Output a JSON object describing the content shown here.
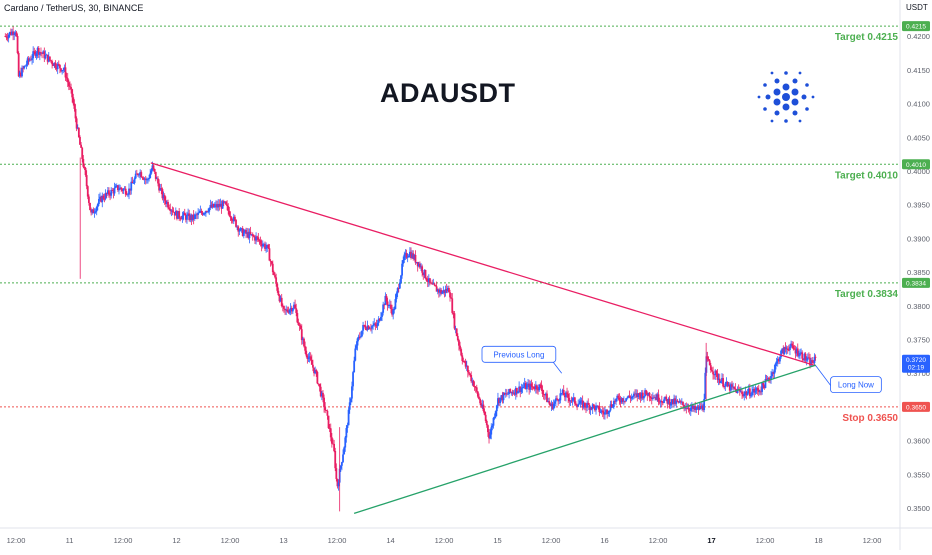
{
  "header": {
    "pair": "Cardano / TetherUS, 30, BINANCE",
    "title": "ADAUSDT",
    "unit": "USDT"
  },
  "colors": {
    "up": "#2962ff",
    "down": "#e91e63",
    "target": "#4caf50",
    "stop": "#ef5350",
    "resistance": "#e91e63",
    "support": "#26a269",
    "logo": "#1e4fd8"
  },
  "chart_data": {
    "type": "candlestick",
    "title": "ADAUSDT",
    "ylabel": "USDT",
    "ylim": [
      0.3465,
      0.4228
    ],
    "y_ticks": [
      0.35,
      0.355,
      0.36,
      0.365,
      0.37,
      0.375,
      0.38,
      0.385,
      0.39,
      0.395,
      0.4,
      0.405,
      0.41,
      0.415,
      0.42
    ],
    "x_ticks": [
      {
        "label": "12:00",
        "t": 0
      },
      {
        "label": "11",
        "t": 1
      },
      {
        "label": "12:00",
        "t": 2
      },
      {
        "label": "12",
        "t": 3
      },
      {
        "label": "12:00",
        "t": 4
      },
      {
        "label": "13",
        "t": 5
      },
      {
        "label": "12:00",
        "t": 6
      },
      {
        "label": "14",
        "t": 7
      },
      {
        "label": "12:00",
        "t": 8
      },
      {
        "label": "15",
        "t": 9
      },
      {
        "label": "12:00",
        "t": 10
      },
      {
        "label": "16",
        "t": 11
      },
      {
        "label": "12:00",
        "t": 12
      },
      {
        "label": "17",
        "t": 13,
        "bold": true
      },
      {
        "label": "12:00",
        "t": 14
      },
      {
        "label": "18",
        "t": 15
      },
      {
        "label": "12:00",
        "t": 16
      }
    ],
    "t_range": [
      -0.2,
      16.5
    ],
    "levels": [
      {
        "name": "Target",
        "value": 0.4215,
        "label": "Target  0.4215",
        "badge": "0.4215",
        "kind": "target"
      },
      {
        "name": "Target",
        "value": 0.401,
        "label": "Target  0.4010",
        "badge": "0.4010",
        "kind": "target"
      },
      {
        "name": "Target",
        "value": 0.3834,
        "label": "Target  0.3834",
        "badge": "0.3834",
        "kind": "target"
      },
      {
        "name": "Stop",
        "value": 0.365,
        "label": "Stop  0.3650",
        "badge": "0.3650",
        "kind": "stop"
      }
    ],
    "last_price": {
      "value": 0.372,
      "label": "0.3720",
      "countdown": "02:19"
    },
    "trendlines": [
      {
        "name": "resistance",
        "from": {
          "t": 2.52,
          "p": 0.4012
        },
        "to": {
          "t": 14.95,
          "p": 0.3711
        }
      },
      {
        "name": "support",
        "from": {
          "t": 6.32,
          "p": 0.3492
        },
        "to": {
          "t": 14.95,
          "p": 0.3712
        }
      }
    ],
    "annotations": [
      {
        "text": "Previous Long",
        "t": 9.4,
        "p": 0.3728,
        "pointer": {
          "t": 10.2,
          "p": 0.37
        }
      },
      {
        "text": "Long Now",
        "t": 15.7,
        "p": 0.3683,
        "pointer": {
          "t": 14.95,
          "p": 0.3711
        }
      }
    ],
    "price_path": [
      {
        "t": -0.2,
        "p": 0.42
      },
      {
        "t": 0.0,
        "p": 0.421
      },
      {
        "t": 0.05,
        "p": 0.414
      },
      {
        "t": 0.2,
        "p": 0.416
      },
      {
        "t": 0.4,
        "p": 0.418
      },
      {
        "t": 0.7,
        "p": 0.416
      },
      {
        "t": 0.9,
        "p": 0.415
      },
      {
        "t": 1.05,
        "p": 0.411
      },
      {
        "t": 1.15,
        "p": 0.406
      },
      {
        "t": 1.3,
        "p": 0.399
      },
      {
        "t": 1.4,
        "p": 0.3935
      },
      {
        "t": 1.6,
        "p": 0.396
      },
      {
        "t": 1.9,
        "p": 0.3975
      },
      {
        "t": 2.1,
        "p": 0.397
      },
      {
        "t": 2.3,
        "p": 0.4
      },
      {
        "t": 2.45,
        "p": 0.3985
      },
      {
        "t": 2.55,
        "p": 0.4005
      },
      {
        "t": 2.75,
        "p": 0.396
      },
      {
        "t": 3.0,
        "p": 0.3935
      },
      {
        "t": 3.3,
        "p": 0.393
      },
      {
        "t": 3.6,
        "p": 0.3945
      },
      {
        "t": 3.9,
        "p": 0.395
      },
      {
        "t": 4.2,
        "p": 0.391
      },
      {
        "t": 4.5,
        "p": 0.39
      },
      {
        "t": 4.7,
        "p": 0.3885
      },
      {
        "t": 4.9,
        "p": 0.382
      },
      {
        "t": 5.0,
        "p": 0.379
      },
      {
        "t": 5.2,
        "p": 0.38
      },
      {
        "t": 5.4,
        "p": 0.3735
      },
      {
        "t": 5.6,
        "p": 0.37
      },
      {
        "t": 5.8,
        "p": 0.364
      },
      {
        "t": 5.95,
        "p": 0.358
      },
      {
        "t": 6.0,
        "p": 0.353
      },
      {
        "t": 6.15,
        "p": 0.36
      },
      {
        "t": 6.25,
        "p": 0.366
      },
      {
        "t": 6.35,
        "p": 0.374
      },
      {
        "t": 6.5,
        "p": 0.377
      },
      {
        "t": 6.75,
        "p": 0.377
      },
      {
        "t": 6.9,
        "p": 0.381
      },
      {
        "t": 7.05,
        "p": 0.379
      },
      {
        "t": 7.25,
        "p": 0.387
      },
      {
        "t": 7.35,
        "p": 0.388
      },
      {
        "t": 7.55,
        "p": 0.386
      },
      {
        "t": 7.75,
        "p": 0.383
      },
      {
        "t": 7.95,
        "p": 0.382
      },
      {
        "t": 8.1,
        "p": 0.3825
      },
      {
        "t": 8.2,
        "p": 0.377
      },
      {
        "t": 8.35,
        "p": 0.372
      },
      {
        "t": 8.55,
        "p": 0.3685
      },
      {
        "t": 8.75,
        "p": 0.364
      },
      {
        "t": 8.85,
        "p": 0.3605
      },
      {
        "t": 9.0,
        "p": 0.366
      },
      {
        "t": 9.2,
        "p": 0.367
      },
      {
        "t": 9.5,
        "p": 0.368
      },
      {
        "t": 9.8,
        "p": 0.368
      },
      {
        "t": 10.0,
        "p": 0.365
      },
      {
        "t": 10.2,
        "p": 0.367
      },
      {
        "t": 10.5,
        "p": 0.3655
      },
      {
        "t": 10.8,
        "p": 0.365
      },
      {
        "t": 11.0,
        "p": 0.364
      },
      {
        "t": 11.2,
        "p": 0.366
      },
      {
        "t": 11.5,
        "p": 0.3665
      },
      {
        "t": 11.8,
        "p": 0.367
      },
      {
        "t": 12.1,
        "p": 0.366
      },
      {
        "t": 12.4,
        "p": 0.3655
      },
      {
        "t": 12.7,
        "p": 0.3645
      },
      {
        "t": 12.85,
        "p": 0.365
      },
      {
        "t": 12.9,
        "p": 0.372
      },
      {
        "t": 13.1,
        "p": 0.3695
      },
      {
        "t": 13.3,
        "p": 0.368
      },
      {
        "t": 13.6,
        "p": 0.367
      },
      {
        "t": 13.9,
        "p": 0.3675
      },
      {
        "t": 14.1,
        "p": 0.3695
      },
      {
        "t": 14.3,
        "p": 0.373
      },
      {
        "t": 14.45,
        "p": 0.374
      },
      {
        "t": 14.65,
        "p": 0.373
      },
      {
        "t": 14.85,
        "p": 0.3715
      },
      {
        "t": 14.95,
        "p": 0.372
      }
    ]
  }
}
